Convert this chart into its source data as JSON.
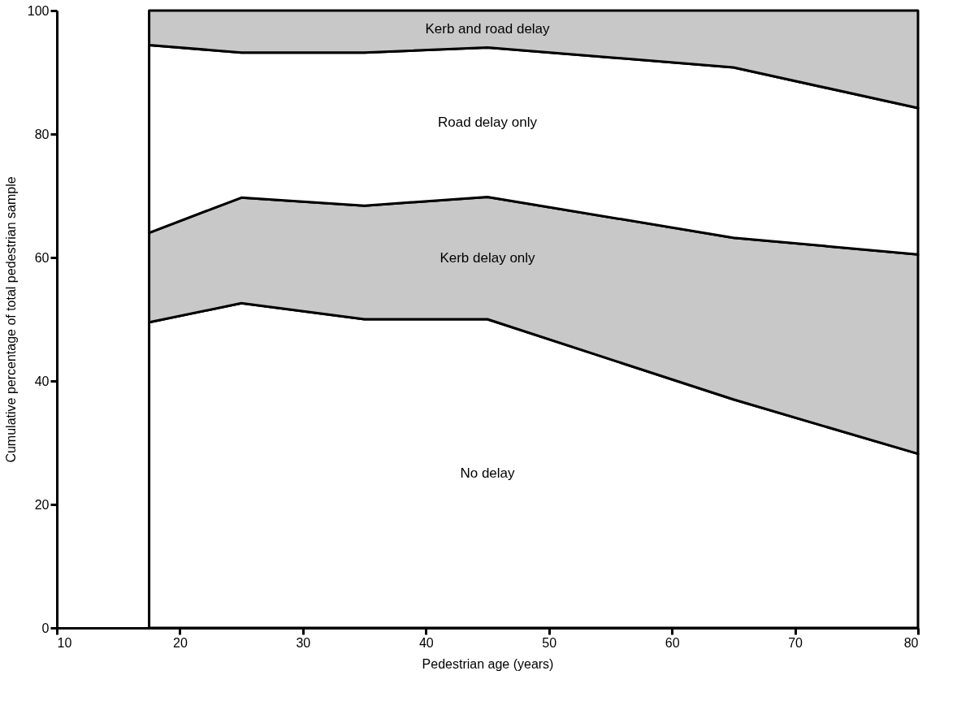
{
  "chart_data": {
    "type": "area",
    "stacked": true,
    "xlabel": "Pedestrian age (years)",
    "ylabel": "Cumulative percentage of total pedestrian sample",
    "x": [
      17.5,
      25,
      35,
      45,
      65,
      80
    ],
    "series": [
      {
        "name": "No delay",
        "color": "#ffffff",
        "values": [
          49.5,
          52.6,
          50,
          50,
          37,
          28.2
        ]
      },
      {
        "name": "Kerb delay only",
        "color": "#c8c8c8",
        "values": [
          14.5,
          17.1,
          18.4,
          19.8,
          26.2,
          32.3
        ]
      },
      {
        "name": "Road delay only",
        "color": "#ffffff",
        "values": [
          30.4,
          23.5,
          24.8,
          24.2,
          27.6,
          23.7
        ]
      },
      {
        "name": "Kerb and road delay",
        "color": "#c8c8c8",
        "values": [
          5.6,
          6.8,
          6.8,
          6,
          9.2,
          15.8
        ]
      }
    ],
    "xlim": [
      10,
      80
    ],
    "xticks": [
      10,
      20,
      30,
      40,
      50,
      60,
      70,
      80
    ],
    "ylim": [
      0,
      100
    ],
    "yticks": [
      0,
      20,
      40,
      60,
      80,
      100
    ],
    "grid": false,
    "legend": false
  }
}
